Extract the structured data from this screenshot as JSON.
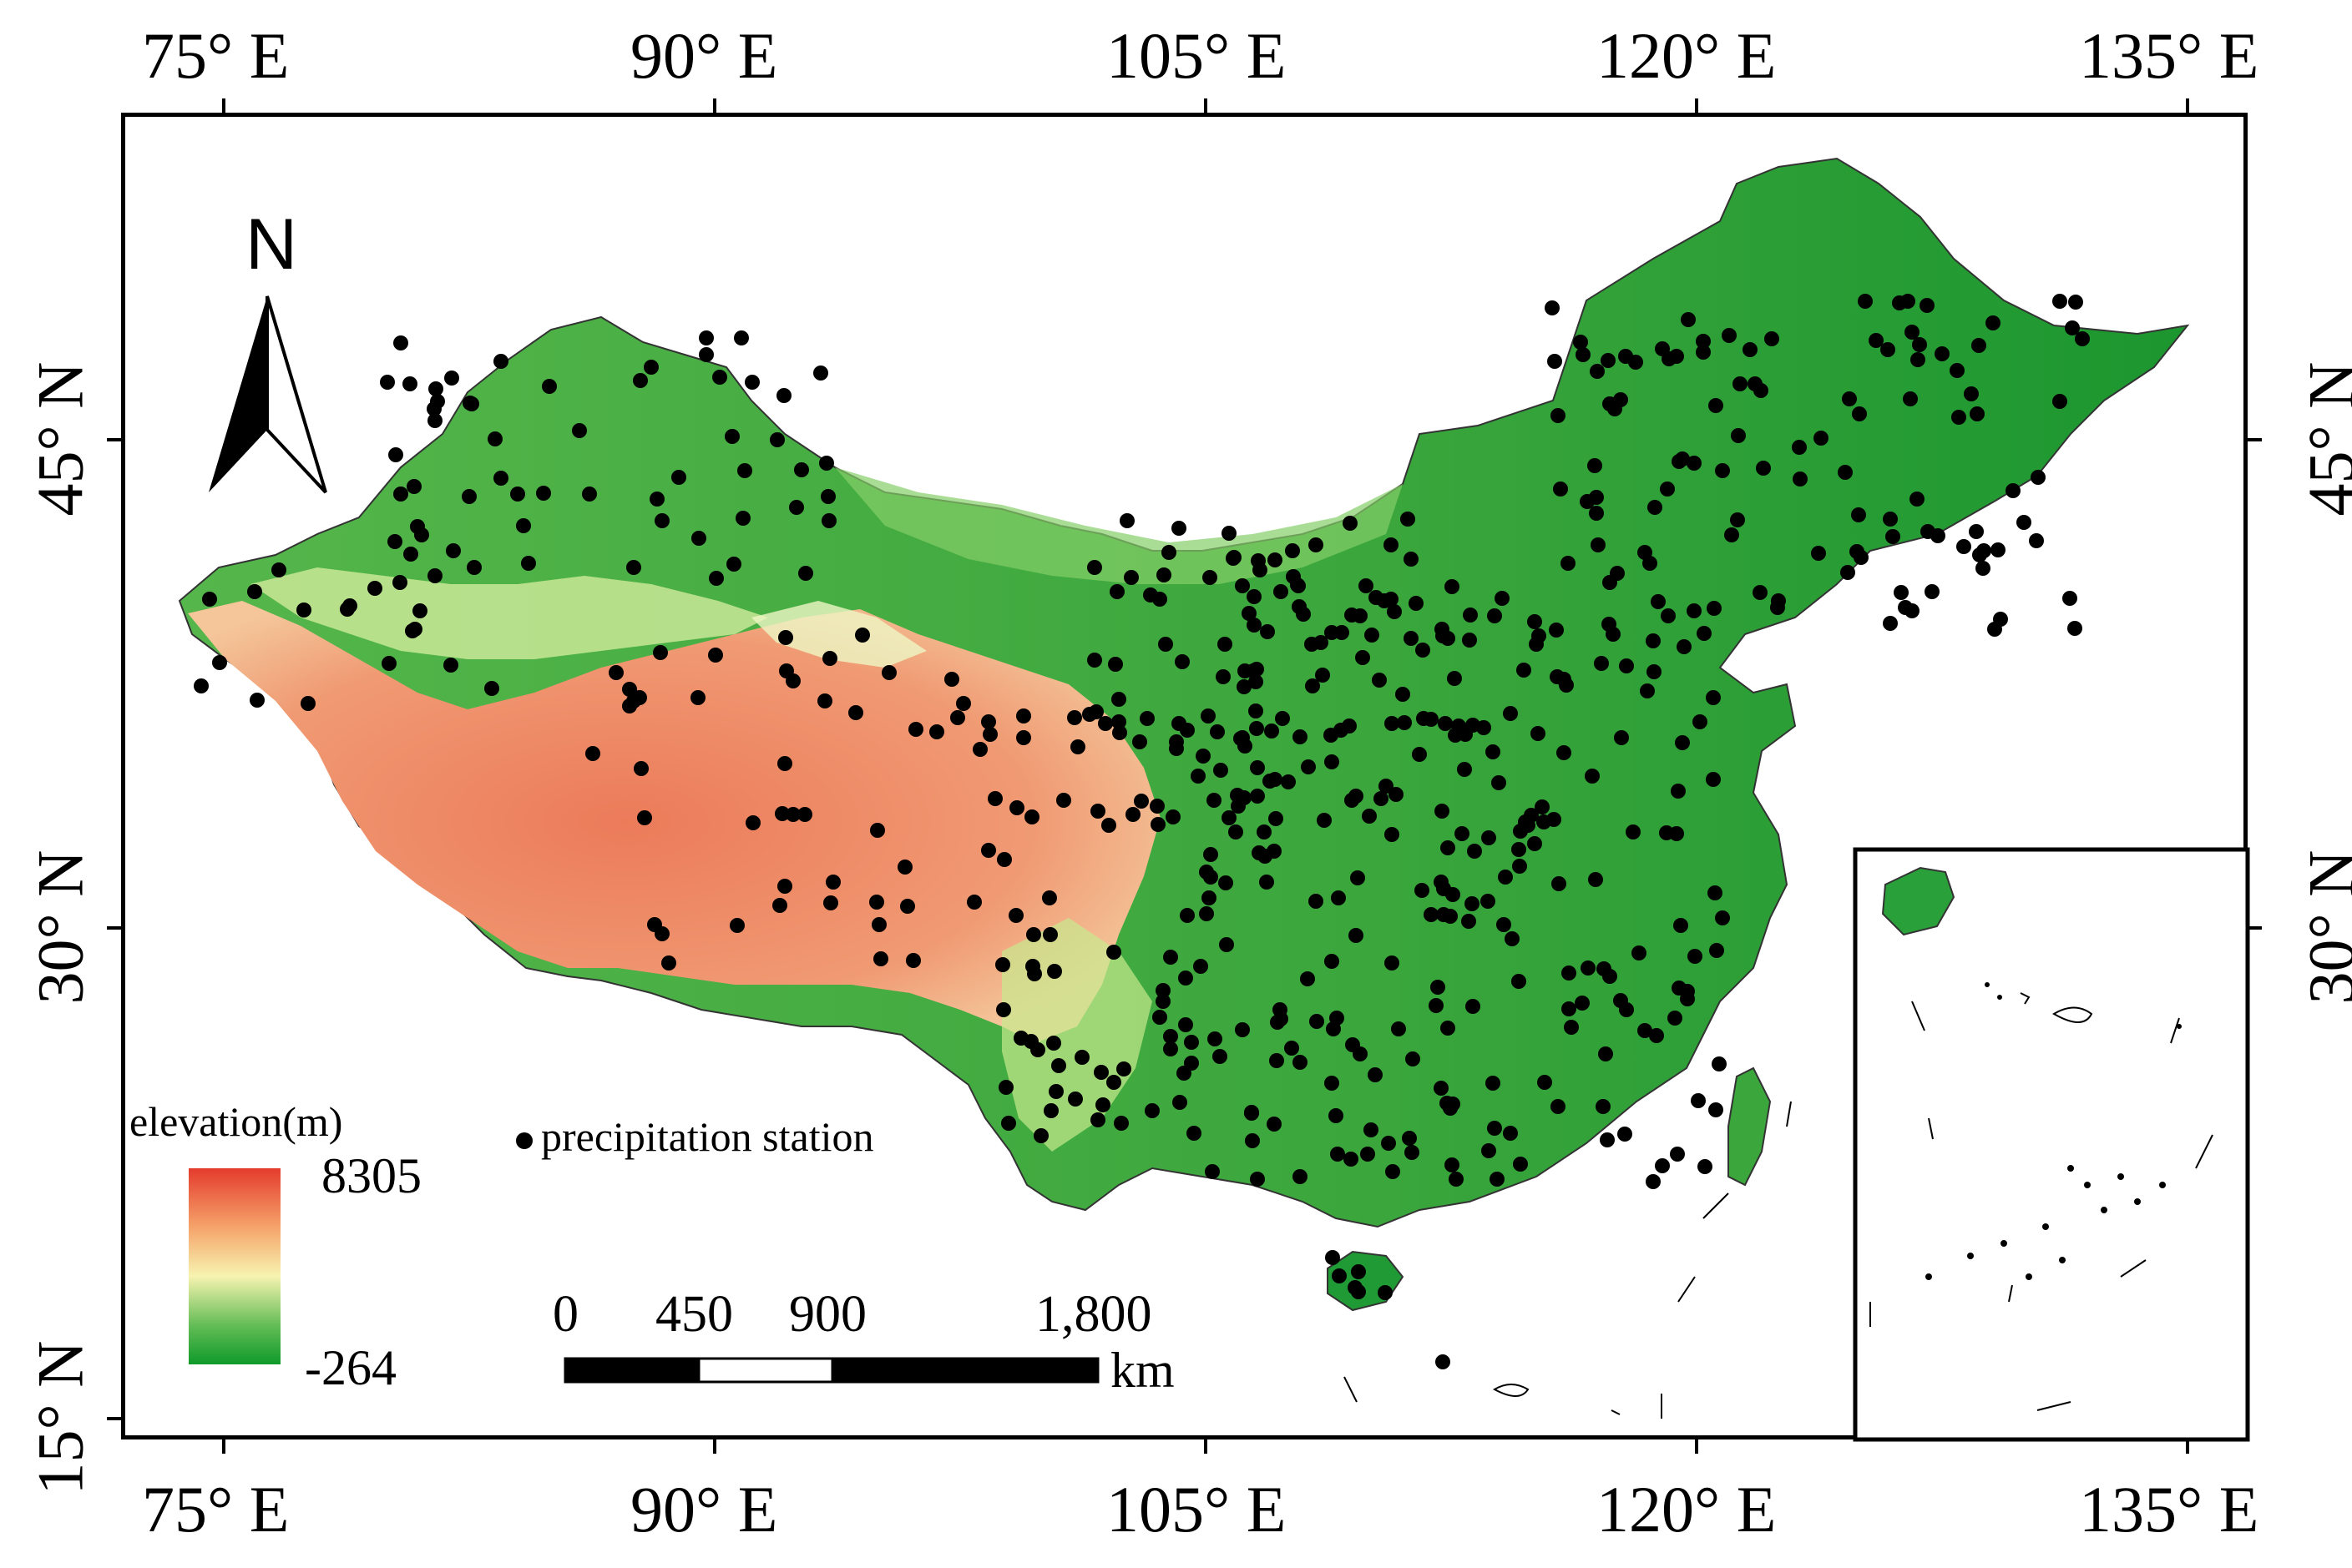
{
  "top_axis": [
    "75° E",
    "90° E",
    "105° E",
    "120° E",
    "135° E"
  ],
  "bottom_axis": [
    "75° E",
    "90° E",
    "105° E",
    "120° E",
    "135° E"
  ],
  "left_axis": [
    "45° N",
    "30° N",
    "15° N"
  ],
  "right_axis": [
    "45° N",
    "30° N"
  ],
  "north_arrow": {
    "label": "N"
  },
  "legend": {
    "title": "elevation(m)",
    "max": "8305",
    "min": "-264",
    "colors": [
      "#e43b2d",
      "#f5a36a",
      "#f7f3b0",
      "#64bd56",
      "#0f9a2a"
    ]
  },
  "station_legend": {
    "label": "precipitation station"
  },
  "scale_bar": {
    "ticks": [
      "0",
      "450",
      "900",
      "1,800"
    ],
    "unit": "km"
  },
  "colors": {
    "lowland": "#1f9a35",
    "mid": "#7fcf62",
    "desert": "#e6f2b8",
    "plateau": "#ef8a64",
    "station": "#000000"
  }
}
